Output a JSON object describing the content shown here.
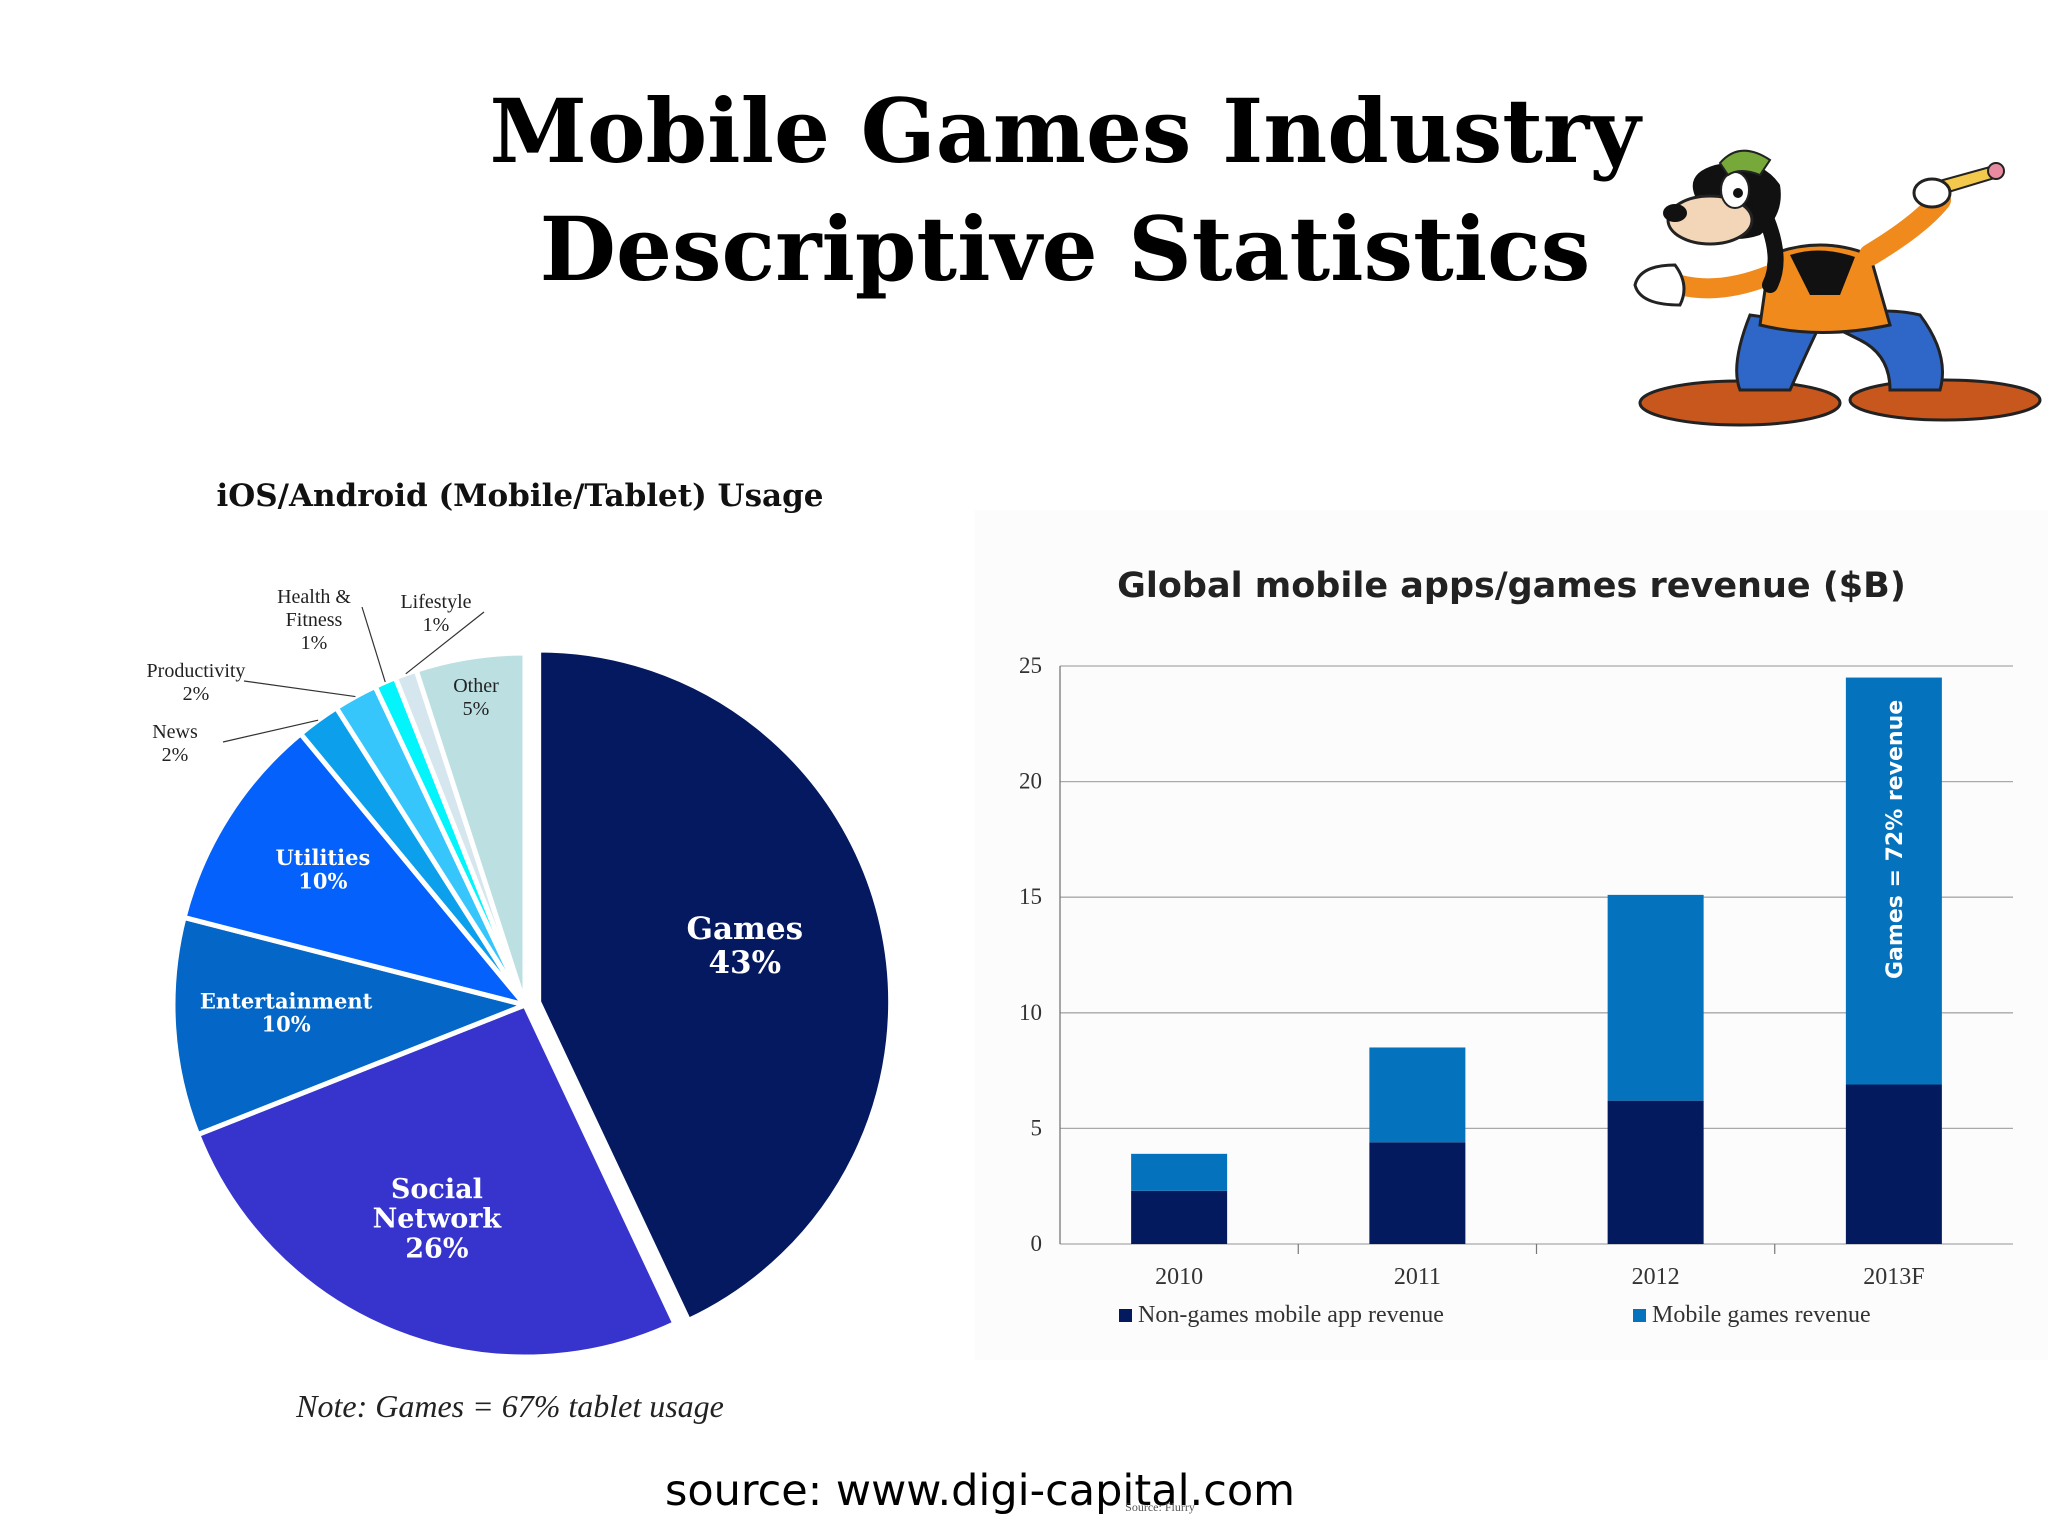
{
  "slide": {
    "title_line1": "Mobile Games Industry",
    "title_line2": "Descriptive Statistics",
    "source": "source: www.digi-capital.com",
    "source_tiny": "Source: Flurry"
  },
  "chart_data": [
    {
      "type": "pie",
      "title": "iOS/Android (Mobile/Tablet) Usage",
      "note": "Note: Games = 67% tablet usage",
      "slices": [
        {
          "label": "Games",
          "value": 43,
          "pct": "43%",
          "color": "#04195f",
          "exploded": true
        },
        {
          "label": "Social Network",
          "value": 26,
          "pct": "26%",
          "color": "#3634cc"
        },
        {
          "label": "Entertainment",
          "value": 10,
          "pct": "10%",
          "color": "#0466c6"
        },
        {
          "label": "Utilities",
          "value": 10,
          "pct": "10%",
          "color": "#0461fc"
        },
        {
          "label": "News",
          "value": 2,
          "pct": "2%",
          "color": "#0ca0ec"
        },
        {
          "label": "Productivity",
          "value": 2,
          "pct": "2%",
          "color": "#36c6fc"
        },
        {
          "label": "Health & Fitness",
          "value": 1,
          "pct": "1%",
          "color": "#04f4fc"
        },
        {
          "label": "Lifestyle",
          "value": 1,
          "pct": "1%",
          "color": "#d6e6ee"
        },
        {
          "label": "Other",
          "value": 5,
          "pct": "5%",
          "color": "#bcdfe2"
        }
      ]
    },
    {
      "type": "bar",
      "stacked": true,
      "title": "Global mobile apps/games revenue ($B)",
      "categories": [
        "2010",
        "2011",
        "2012",
        "2013F"
      ],
      "series": [
        {
          "name": "Non-games mobile app revenue",
          "color": "#041a5e",
          "values": [
            2.3,
            4.4,
            6.2,
            6.9
          ]
        },
        {
          "name": "Mobile games revenue",
          "color": "#0472bc",
          "values": [
            1.6,
            4.1,
            8.9,
            17.6
          ]
        }
      ],
      "ylim": [
        0,
        25
      ],
      "yticks": [
        0,
        5,
        10,
        15,
        20,
        25
      ],
      "grid": true,
      "legend": "bottom",
      "annotation": "Games = 72% revenue"
    }
  ]
}
